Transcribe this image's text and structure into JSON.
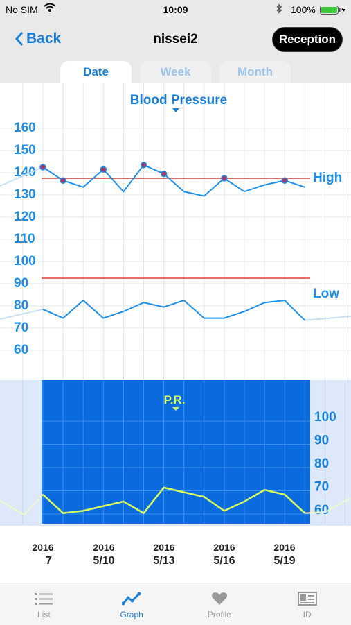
{
  "status": {
    "carrier": "No SIM",
    "time": "10:09",
    "battery": "100%"
  },
  "nav": {
    "back_label": "Back",
    "title": "nissei2",
    "reception_label": "Reception"
  },
  "tabs": [
    {
      "label": "Date",
      "active": true
    },
    {
      "label": "Week",
      "active": false
    },
    {
      "label": "Month",
      "active": false
    }
  ],
  "tabbar": [
    {
      "label": "List",
      "icon": "list-icon",
      "active": false
    },
    {
      "label": "Graph",
      "icon": "graph-icon",
      "active": true
    },
    {
      "label": "Profile",
      "icon": "heart-icon",
      "active": false
    },
    {
      "label": "ID",
      "icon": "id-card-icon",
      "active": false
    }
  ],
  "colors": {
    "accent": "#1a7fd6",
    "reference_line": "#e53935",
    "pr_panel": "#0a6bde",
    "pr_line": "#d8ff5e"
  },
  "chart_data": [
    {
      "type": "line",
      "title": "Blood Pressure",
      "ylim": [
        55,
        165
      ],
      "yticks": [
        160,
        150,
        140,
        130,
        120,
        110,
        100,
        90,
        80,
        70,
        60
      ],
      "reference_lines": [
        135,
        90
      ],
      "series": [
        {
          "name": "High",
          "values": [
            140,
            134,
            131,
            139,
            129,
            141,
            137,
            129,
            127,
            135,
            129,
            132,
            134,
            131
          ]
        },
        {
          "name": "Low",
          "values": [
            76,
            72,
            80,
            72,
            75,
            79,
            77,
            80,
            72,
            72,
            75,
            79,
            80,
            71
          ]
        }
      ],
      "marked_high_points": [
        0,
        1,
        3,
        5,
        6,
        9,
        12
      ]
    },
    {
      "type": "line",
      "title": "P.R.",
      "ylim": [
        55,
        110
      ],
      "yticks": [
        100,
        90,
        80,
        70,
        60
      ],
      "series": [
        {
          "values": [
            66,
            58,
            59,
            61,
            63,
            58,
            69,
            67,
            65,
            59,
            63,
            68,
            66,
            58
          ]
        }
      ]
    }
  ],
  "x_labels": [
    {
      "year": "2016",
      "date": "7"
    },
    {
      "year": "2016",
      "date": "5/10"
    },
    {
      "year": "2016",
      "date": "5/13"
    },
    {
      "year": "2016",
      "date": "5/16"
    },
    {
      "year": "2016",
      "date": "5/19"
    }
  ]
}
